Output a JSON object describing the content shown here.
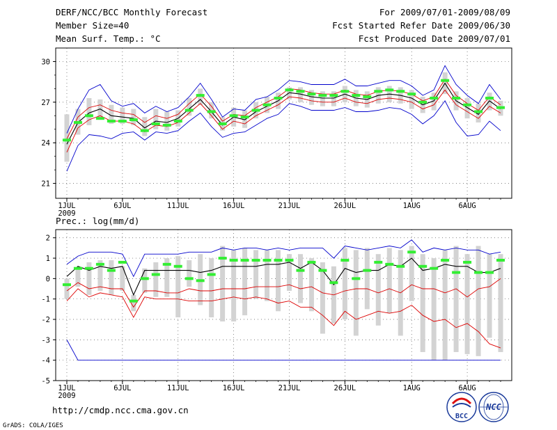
{
  "header": {
    "title": "DERF/NCC/BCC Monthly Forecast",
    "member_size": "Member Size=40",
    "variable_top": "Mean Surf. Temp.: °C",
    "for_range": "For 2009/07/01-2009/08/09",
    "fcst_started": "Fcst Started Refer Date 2009/06/30",
    "fcst_produced": "Fcst Produced Date 2009/07/01"
  },
  "footer": {
    "url": "http://cmdp.ncc.cma.gov.cn",
    "credit": "GrADS: COLA/IGES",
    "logo_left": "BCC",
    "logo_right": "NCC"
  },
  "colors": {
    "mean": "#000000",
    "envelope": "#0000cc",
    "spread": "#dd0000",
    "observed": "#33ee33",
    "box": "#d3d3d3"
  },
  "chart_data": [
    {
      "type": "line",
      "title": "Mean Surf. Temp.: °C",
      "x_tick_labels": [
        "1JUL",
        "6JUL",
        "11JUL",
        "16JUL",
        "21JUL",
        "26JUL",
        "1AUG",
        "6AUG"
      ],
      "x_tick_days": [
        1,
        6,
        11,
        16,
        21,
        26,
        32,
        37
      ],
      "year_label": "2009",
      "ylim": [
        19.9,
        31.0
      ],
      "y_ticks": [
        21,
        24,
        27,
        30
      ],
      "x": [
        1,
        2,
        3,
        4,
        5,
        6,
        7,
        8,
        9,
        10,
        11,
        12,
        13,
        14,
        15,
        16,
        17,
        18,
        19,
        20,
        21,
        22,
        23,
        24,
        25,
        26,
        27,
        28,
        29,
        30,
        31,
        32,
        33,
        34,
        35,
        36,
        37,
        38,
        39,
        40
      ],
      "series": [
        {
          "name": "ensemble max",
          "values": [
            24.7,
            26.5,
            27.9,
            28.3,
            27.1,
            26.7,
            26.9,
            26.2,
            26.7,
            26.3,
            26.6,
            27.4,
            28.4,
            27.2,
            25.9,
            26.5,
            26.4,
            27.2,
            27.4,
            27.9,
            28.6,
            28.5,
            28.3,
            28.3,
            28.3,
            28.7,
            28.2,
            28.2,
            28.4,
            28.6,
            28.6,
            28.2,
            27.5,
            27.9,
            29.7,
            28.3,
            27.5,
            26.9,
            28.3,
            27.2
          ]
        },
        {
          "name": "mean + spread",
          "values": [
            24.3,
            25.9,
            26.6,
            26.8,
            26.4,
            26.2,
            26.1,
            25.5,
            26.0,
            25.8,
            26.1,
            26.9,
            27.6,
            26.7,
            25.6,
            26.1,
            26.0,
            26.6,
            27.0,
            27.4,
            28.0,
            27.9,
            27.7,
            27.6,
            27.6,
            27.9,
            27.6,
            27.5,
            27.8,
            27.9,
            27.8,
            27.6,
            27.1,
            27.4,
            28.7,
            27.5,
            26.9,
            26.4,
            27.4,
            26.8
          ]
        },
        {
          "name": "ensemble mean",
          "values": [
            23.9,
            25.5,
            26.2,
            26.5,
            26.0,
            25.9,
            25.8,
            25.1,
            25.6,
            25.5,
            25.8,
            26.5,
            27.2,
            26.3,
            25.3,
            25.9,
            25.7,
            26.3,
            26.7,
            27.1,
            27.7,
            27.6,
            27.4,
            27.3,
            27.3,
            27.6,
            27.3,
            27.2,
            27.5,
            27.6,
            27.5,
            27.3,
            26.8,
            27.1,
            28.4,
            27.1,
            26.6,
            26.1,
            27.1,
            26.5
          ]
        },
        {
          "name": "mean - spread",
          "values": [
            23.3,
            25.1,
            25.7,
            26.0,
            25.6,
            25.6,
            25.4,
            24.8,
            25.3,
            25.2,
            25.5,
            26.2,
            26.9,
            26.0,
            25.0,
            25.6,
            25.4,
            26.0,
            26.4,
            26.8,
            27.4,
            27.3,
            27.1,
            27.0,
            27.0,
            27.3,
            27.0,
            26.9,
            27.2,
            27.3,
            27.2,
            27.0,
            26.5,
            26.8,
            27.9,
            26.8,
            26.3,
            25.8,
            26.7,
            26.2
          ]
        },
        {
          "name": "ensemble min",
          "values": [
            21.9,
            23.8,
            24.6,
            24.5,
            24.3,
            24.7,
            24.8,
            24.2,
            24.8,
            24.7,
            24.9,
            25.6,
            26.2,
            25.2,
            24.4,
            24.7,
            24.8,
            25.3,
            25.8,
            26.1,
            26.9,
            26.7,
            26.4,
            26.4,
            26.4,
            26.6,
            26.3,
            26.3,
            26.4,
            26.6,
            26.5,
            26.1,
            25.4,
            26.0,
            27.1,
            25.5,
            24.5,
            24.6,
            25.6,
            24.9
          ]
        }
      ],
      "box_low": [
        22.6,
        24.6,
        25.3,
        25.7,
        25.4,
        25.4,
        25.3,
        24.5,
        25.0,
        24.9,
        25.2,
        26.0,
        26.8,
        25.8,
        24.9,
        25.2,
        25.1,
        25.8,
        26.2,
        26.5,
        27.2,
        27.0,
        26.8,
        26.7,
        26.7,
        27.0,
        26.7,
        26.6,
        26.9,
        27.0,
        26.9,
        26.5,
        26.2,
        26.4,
        27.6,
        26.4,
        25.8,
        25.5,
        26.4,
        26.0
      ],
      "box_high": [
        26.1,
        26.5,
        27.3,
        27.2,
        26.8,
        26.6,
        26.5,
        25.9,
        26.5,
        26.3,
        26.4,
        27.3,
        28.0,
        27.0,
        25.9,
        26.6,
        26.4,
        27.0,
        27.4,
        27.7,
        28.1,
        28.1,
        27.9,
        27.8,
        27.8,
        28.2,
        27.9,
        27.8,
        28.1,
        28.2,
        28.1,
        27.9,
        27.4,
        27.7,
        29.2,
        27.8,
        27.3,
        26.9,
        27.7,
        27.1
      ],
      "observed": [
        24.2,
        25.5,
        26.0,
        25.8,
        25.6,
        25.6,
        25.7,
        24.9,
        25.4,
        25.3,
        25.6,
        26.4,
        27.5,
        26.3,
        25.4,
        26.0,
        25.9,
        26.4,
        26.8,
        27.3,
        27.9,
        27.8,
        27.6,
        27.5,
        27.5,
        27.8,
        27.5,
        27.4,
        27.8,
        27.9,
        27.8,
        27.6,
        27.0,
        27.3,
        28.6,
        27.3,
        26.8,
        26.3,
        27.3,
        26.6
      ]
    },
    {
      "type": "line",
      "title": "Prec.: log(mm/d)",
      "x_tick_labels": [
        "1JUL",
        "6JUL",
        "11JUL",
        "16JUL",
        "21JUL",
        "26JUL",
        "1AUG",
        "6AUG"
      ],
      "x_tick_days": [
        1,
        6,
        11,
        16,
        21,
        26,
        32,
        37
      ],
      "year_label": "2009",
      "ylim": [
        -5,
        2.4
      ],
      "y_ticks": [
        -5,
        -4,
        -3,
        -2,
        -1,
        0,
        1,
        2
      ],
      "x": [
        1,
        2,
        3,
        4,
        5,
        6,
        7,
        8,
        9,
        10,
        11,
        12,
        13,
        14,
        15,
        16,
        17,
        18,
        19,
        20,
        21,
        22,
        23,
        24,
        25,
        26,
        27,
        28,
        29,
        30,
        31,
        32,
        33,
        34,
        35,
        36,
        37,
        38,
        39,
        40
      ],
      "series": [
        {
          "name": "ensemble max",
          "values": [
            0.7,
            1.1,
            1.3,
            1.3,
            1.3,
            1.2,
            0.1,
            1.2,
            1.2,
            1.2,
            1.2,
            1.3,
            1.3,
            1.3,
            1.5,
            1.4,
            1.5,
            1.5,
            1.4,
            1.5,
            1.4,
            1.5,
            1.5,
            1.5,
            1.0,
            1.6,
            1.5,
            1.4,
            1.5,
            1.6,
            1.5,
            1.9,
            1.3,
            1.5,
            1.4,
            1.5,
            1.4,
            1.4,
            1.2,
            1.3
          ]
        },
        {
          "name": "ensemble mean",
          "values": [
            0.1,
            0.6,
            0.4,
            0.6,
            0.5,
            0.6,
            -0.8,
            0.4,
            0.4,
            0.4,
            0.4,
            0.4,
            0.3,
            0.4,
            0.6,
            0.6,
            0.6,
            0.6,
            0.7,
            0.7,
            0.8,
            0.5,
            0.8,
            0.4,
            -0.3,
            0.5,
            0.3,
            0.4,
            0.4,
            0.7,
            0.6,
            1.0,
            0.4,
            0.5,
            0.7,
            0.6,
            0.6,
            0.3,
            0.3,
            0.5
          ]
        },
        {
          "name": "mean - spread",
          "values": [
            -0.6,
            -0.2,
            -0.5,
            -0.4,
            -0.5,
            -0.5,
            -1.4,
            -0.6,
            -0.6,
            -0.7,
            -0.7,
            -0.5,
            -0.6,
            -0.6,
            -0.5,
            -0.5,
            -0.5,
            -0.4,
            -0.4,
            -0.4,
            -0.3,
            -0.5,
            -0.4,
            -0.7,
            -0.8,
            -0.6,
            -0.5,
            -0.5,
            -0.7,
            -0.5,
            -0.7,
            -0.3,
            -0.5,
            -0.5,
            -0.7,
            -0.5,
            -0.9,
            -0.5,
            -0.4,
            0.0
          ]
        },
        {
          "name": "lower spread",
          "values": [
            -1.1,
            -0.5,
            -0.9,
            -0.7,
            -0.8,
            -0.9,
            -1.9,
            -0.9,
            -1.0,
            -1.0,
            -1.0,
            -1.1,
            -1.1,
            -1.1,
            -1.0,
            -0.9,
            -1.0,
            -0.9,
            -1.0,
            -1.2,
            -1.1,
            -1.4,
            -1.4,
            -1.8,
            -2.3,
            -1.6,
            -2.0,
            -1.8,
            -1.6,
            -1.7,
            -1.6,
            -1.3,
            -1.8,
            -2.1,
            -2.0,
            -2.4,
            -2.2,
            -2.6,
            -3.2,
            -3.4
          ]
        },
        {
          "name": "ensemble min",
          "values": [
            -3.0,
            -4.0,
            -4.0,
            -4.0,
            -4.0,
            -4.0,
            -4.0,
            -4.0,
            -4.0,
            -4.0,
            -4.0,
            -4.0,
            -4.0,
            -4.0,
            -4.0,
            -4.0,
            -4.0,
            -4.0,
            -4.0,
            -4.0,
            -4.0,
            -4.0,
            -4.0,
            -4.0,
            -4.0,
            -4.0,
            -4.0,
            -4.0,
            -4.0,
            -4.0,
            -4.0,
            -4.0,
            -4.0,
            -4.0,
            -4.0,
            -4.0,
            -4.0,
            -4.0,
            -4.0,
            -4.0
          ]
        }
      ],
      "box_low": [
        -1.0,
        -0.4,
        -0.8,
        -0.6,
        -0.8,
        -0.6,
        -1.6,
        -0.7,
        -0.9,
        -0.9,
        -1.9,
        -0.4,
        -1.3,
        -1.9,
        -2.1,
        -2.1,
        -1.8,
        -1.0,
        -1.1,
        -1.6,
        -0.6,
        -1.2,
        -1.6,
        -2.7,
        -2.2,
        -2.0,
        -2.8,
        -1.5,
        -2.3,
        -1.7,
        -2.8,
        -1.1,
        -3.6,
        -4.0,
        -4.0,
        -3.6,
        -3.7,
        -3.8,
        -2.9,
        -3.6
      ],
      "box_high": [
        0.0,
        0.5,
        0.8,
        0.9,
        0.9,
        0.6,
        -0.8,
        0.5,
        0.8,
        1.0,
        1.1,
        0.9,
        1.2,
        1.0,
        1.6,
        1.4,
        1.5,
        1.4,
        1.4,
        1.4,
        1.2,
        1.2,
        1.0,
        0.8,
        0.6,
        1.5,
        1.4,
        1.5,
        1.2,
        1.5,
        1.4,
        1.6,
        1.2,
        1.0,
        1.4,
        1.6,
        1.2,
        1.6,
        1.2,
        1.2
      ],
      "observed": [
        -0.3,
        0.5,
        0.5,
        0.7,
        0.4,
        0.8,
        -1.1,
        0.0,
        0.2,
        0.7,
        0.6,
        0.0,
        -0.1,
        0.2,
        1.0,
        0.9,
        0.9,
        0.9,
        0.9,
        0.9,
        0.9,
        0.4,
        0.8,
        0.4,
        -0.2,
        0.9,
        0.0,
        0.4,
        0.8,
        0.7,
        0.6,
        1.3,
        0.6,
        0.5,
        0.9,
        0.3,
        0.8,
        0.3,
        0.3,
        0.9
      ]
    }
  ]
}
